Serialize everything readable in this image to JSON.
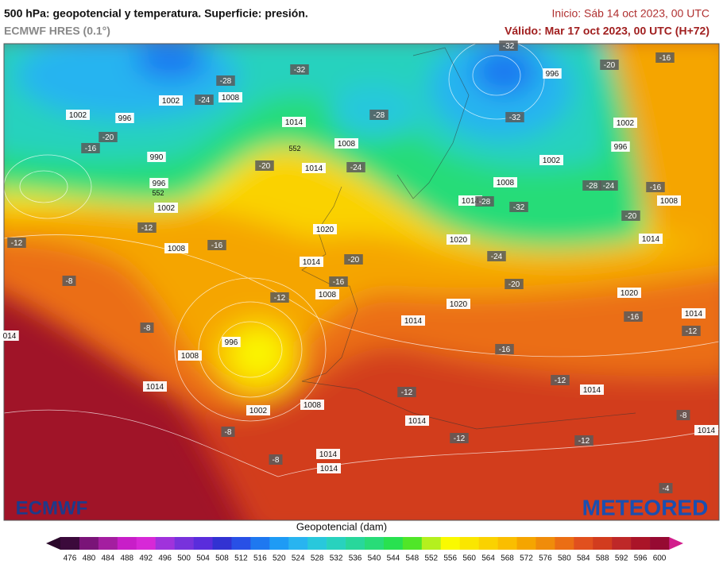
{
  "header": {
    "title": "500 hPa: geopotencial y temperatura. Superficie: presión.",
    "model": "ECMWF HRES (0.1°)",
    "init": "Inicio: Sáb 14 oct 2023, 00 UTC",
    "valid": "Válido: Mar 17 oct 2023, 00 UTC (H+72)"
  },
  "map": {
    "labels": [
      "-32",
      "-28",
      "1002",
      "-24",
      "1008",
      "1002",
      "996",
      "1014",
      "-28",
      "-16",
      "-20",
      "990",
      "1008",
      "-20",
      "1014",
      "-24",
      "996",
      "1002",
      "-12",
      "1008",
      "-16",
      "-12",
      "-8",
      "1020",
      "1014",
      "-20",
      "-16",
      "-12",
      "1008",
      "-8",
      "996",
      "1008",
      "1014",
      "1002",
      "1008",
      "-8",
      "-8",
      "1014",
      "1014",
      "1014",
      "-12",
      "-12",
      "1020",
      "-24",
      "-20",
      "1020",
      "1014",
      "-16",
      "-12",
      "1014",
      "-12",
      "-32",
      "996",
      "-32",
      "1002",
      "996",
      "1002",
      "1008",
      "-28",
      "-24",
      "1014",
      "-28",
      "-32",
      "-20",
      "-16",
      "-16",
      "1008",
      "-20",
      "1014",
      "1020",
      "-16",
      "1014",
      "-12",
      "-8",
      "1014",
      "-4",
      "014",
      "552",
      "552"
    ],
    "logos": {
      "left": "ECMWF",
      "right": "METEORED"
    }
  },
  "legend": {
    "title": "Geopotencial (dam)",
    "ticks": [
      476,
      480,
      484,
      488,
      492,
      496,
      500,
      504,
      508,
      512,
      516,
      520,
      524,
      528,
      532,
      536,
      540,
      544,
      548,
      552,
      556,
      560,
      564,
      568,
      572,
      576,
      580,
      584,
      588,
      592,
      596,
      600
    ],
    "colors": [
      "#3b0a3b",
      "#7a1478",
      "#a41ea0",
      "#c81ec8",
      "#d728d7",
      "#a032dc",
      "#7832dc",
      "#5a2ddc",
      "#3232d2",
      "#2850e6",
      "#1e78f0",
      "#1e9bf5",
      "#28b4f0",
      "#28c8dc",
      "#28d2be",
      "#28d79b",
      "#28dc78",
      "#28e150",
      "#50e628",
      "#b4f01e",
      "#fafa00",
      "#fae600",
      "#fad200",
      "#fabe00",
      "#f5a500",
      "#f08c0a",
      "#eb6e14",
      "#e1501e",
      "#d23c1e",
      "#be2828",
      "#aa1428",
      "#960a32"
    ]
  }
}
